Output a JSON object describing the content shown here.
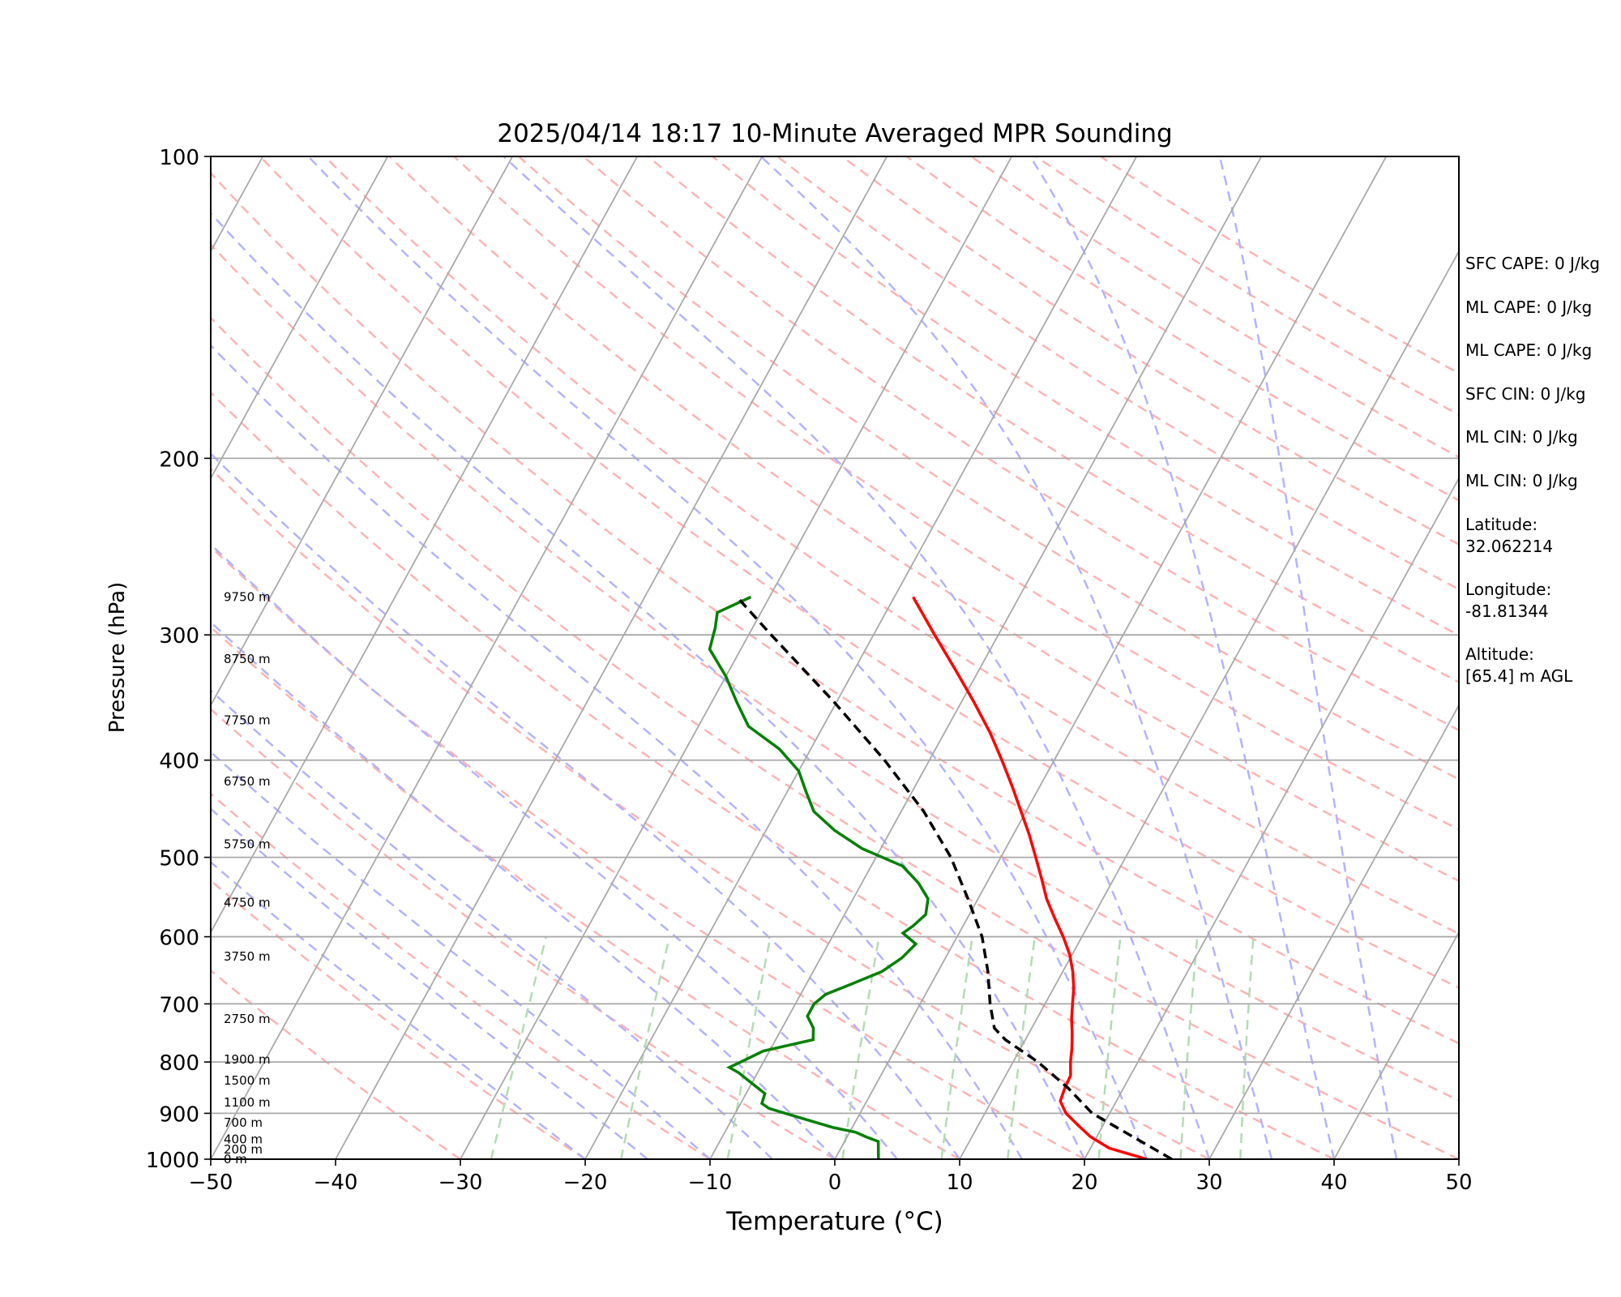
{
  "chart_data": {
    "type": "line",
    "subtype": "skew-T log-p sounding",
    "title": "2025/04/14 18:17 10-Minute Averaged MPR Sounding",
    "xlabel": "Temperature (°C)",
    "ylabel": "Pressure (hPa)",
    "xlim": [
      -50,
      50
    ],
    "ylim": [
      1000,
      100
    ],
    "y_scale": "log",
    "x_ticks": [
      -50,
      -40,
      -30,
      -20,
      -10,
      0,
      10,
      20,
      30,
      40,
      50
    ],
    "x_tick_labels": [
      "−50",
      "−40",
      "−30",
      "−20",
      "−10",
      "0",
      "10",
      "20",
      "30",
      "40",
      "50"
    ],
    "y_ticks": [
      1000,
      900,
      800,
      700,
      600,
      500,
      400,
      300,
      200,
      100
    ],
    "y_tick_labels": [
      "1000",
      "900",
      "800",
      "700",
      "600",
      "500",
      "400",
      "300",
      "200",
      "100"
    ],
    "height_labels": [
      {
        "p": 1000,
        "label": "0 m"
      },
      {
        "p": 978,
        "label": "200 m"
      },
      {
        "p": 955,
        "label": "400 m"
      },
      {
        "p": 920,
        "label": "700 m"
      },
      {
        "p": 878,
        "label": "1100 m"
      },
      {
        "p": 835,
        "label": "1500 m"
      },
      {
        "p": 795,
        "label": "1900 m"
      },
      {
        "p": 725,
        "label": "2750 m"
      },
      {
        "p": 628,
        "label": "3750 m"
      },
      {
        "p": 555,
        "label": "4750 m"
      },
      {
        "p": 485,
        "label": "5750 m"
      },
      {
        "p": 420,
        "label": "6750 m"
      },
      {
        "p": 365,
        "label": "7750 m"
      },
      {
        "p": 317,
        "label": "8750 m"
      },
      {
        "p": 275,
        "label": "9750 m"
      }
    ],
    "series": [
      {
        "role": "temperature",
        "color": "#ff0000",
        "points": [
          [
            1000,
            25.0
          ],
          [
            975,
            21.5
          ],
          [
            950,
            19.5
          ],
          [
            925,
            18.0
          ],
          [
            900,
            16.5
          ],
          [
            875,
            15.5
          ],
          [
            850,
            15.3
          ],
          [
            825,
            15.2
          ],
          [
            800,
            14.6
          ],
          [
            775,
            14.1
          ],
          [
            750,
            13.5
          ],
          [
            725,
            12.8
          ],
          [
            700,
            12.2
          ],
          [
            675,
            11.6
          ],
          [
            650,
            10.8
          ],
          [
            625,
            9.8
          ],
          [
            600,
            8.5
          ],
          [
            575,
            7.0
          ],
          [
            550,
            5.5
          ],
          [
            525,
            4.2
          ],
          [
            500,
            2.8
          ],
          [
            475,
            1.3
          ],
          [
            450,
            -0.4
          ],
          [
            425,
            -2.2
          ],
          [
            400,
            -4.2
          ],
          [
            375,
            -6.4
          ],
          [
            350,
            -9.0
          ],
          [
            325,
            -11.9
          ],
          [
            300,
            -15.1
          ],
          [
            275,
            -18.5
          ]
        ]
      },
      {
        "role": "dewpoint",
        "color": "#008000",
        "points": [
          [
            1000,
            3.5
          ],
          [
            985,
            3.2
          ],
          [
            975,
            3.0
          ],
          [
            960,
            2.7
          ],
          [
            950,
            1.5
          ],
          [
            940,
            0.5
          ],
          [
            930,
            -1.5
          ],
          [
            910,
            -4.5
          ],
          [
            890,
            -7.5
          ],
          [
            880,
            -8.3
          ],
          [
            860,
            -8.5
          ],
          [
            840,
            -10.0
          ],
          [
            820,
            -11.5
          ],
          [
            810,
            -12.5
          ],
          [
            795,
            -11.5
          ],
          [
            780,
            -10.5
          ],
          [
            760,
            -7.0
          ],
          [
            740,
            -7.5
          ],
          [
            720,
            -8.5
          ],
          [
            700,
            -8.5
          ],
          [
            685,
            -8.0
          ],
          [
            670,
            -6.5
          ],
          [
            650,
            -4.5
          ],
          [
            630,
            -3.5
          ],
          [
            610,
            -3.0
          ],
          [
            595,
            -4.5
          ],
          [
            585,
            -4.0
          ],
          [
            570,
            -3.5
          ],
          [
            550,
            -4.0
          ],
          [
            530,
            -5.5
          ],
          [
            510,
            -7.5
          ],
          [
            490,
            -11.5
          ],
          [
            470,
            -14.5
          ],
          [
            450,
            -17.0
          ],
          [
            430,
            -18.5
          ],
          [
            410,
            -20.0
          ],
          [
            390,
            -22.5
          ],
          [
            370,
            -26.0
          ],
          [
            350,
            -28.0
          ],
          [
            330,
            -30.0
          ],
          [
            310,
            -32.5
          ],
          [
            295,
            -33.0
          ],
          [
            285,
            -33.5
          ],
          [
            275,
            -31.5
          ]
        ]
      },
      {
        "role": "parcel",
        "color": "#000000",
        "points": [
          [
            1000,
            27.0
          ],
          [
            900,
            18.6
          ],
          [
            850,
            15.6
          ],
          [
            800,
            12.0
          ],
          [
            760,
            8.4
          ],
          [
            740,
            7.0
          ],
          [
            700,
            5.6
          ],
          [
            650,
            4.0
          ],
          [
            600,
            2.0
          ],
          [
            550,
            -0.8
          ],
          [
            500,
            -4.0
          ],
          [
            450,
            -8.2
          ],
          [
            400,
            -13.6
          ],
          [
            350,
            -20.2
          ],
          [
            300,
            -28.2
          ],
          [
            275,
            -32.6
          ]
        ]
      }
    ],
    "background_lines": {
      "isotherm_color": "#a9a9a9",
      "dry_adiabat_color": "#ffb3b3",
      "moist_adiabat_color": "#b3b3ff",
      "mixing_ratio_color": "#b3dcb3"
    }
  },
  "info": {
    "sfc_cape": "SFC CAPE: 0 J/kg",
    "ml_cape_1": "ML CAPE: 0 J/kg",
    "ml_cape_2": "ML CAPE: 0 J/kg",
    "sfc_cin": "SFC CIN: 0 J/kg",
    "ml_cin_1": "ML CIN: 0 J/kg",
    "ml_cin_2": "ML CIN: 0 J/kg",
    "latitude": "Latitude:\n32.062214",
    "longitude": "Longitude:\n-81.81344",
    "altitude": "Altitude:\n[65.4] m AGL"
  }
}
